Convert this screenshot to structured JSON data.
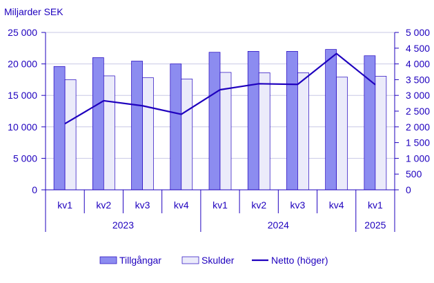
{
  "chart_data": {
    "type": "bar",
    "unit_label": "Miljarder SEK",
    "categories": [
      "kv1",
      "kv2",
      "kv3",
      "kv4",
      "kv1",
      "kv2",
      "kv3",
      "kv4",
      "kv1"
    ],
    "groups": [
      {
        "label": "2023",
        "span": 4
      },
      {
        "label": "2024",
        "span": 4
      },
      {
        "label": "2025",
        "span": 1
      }
    ],
    "series": [
      {
        "name": "Tillgångar",
        "type": "bar",
        "axis": "left",
        "color": "#8c8cf0",
        "values": [
          19600,
          21000,
          20450,
          20000,
          21850,
          22000,
          22000,
          22300,
          21300
        ]
      },
      {
        "name": "Skulder",
        "type": "bar",
        "axis": "left",
        "color": "#ebebfa",
        "values": [
          17500,
          18100,
          17800,
          17600,
          18650,
          18600,
          18600,
          17900,
          18050
        ]
      },
      {
        "name": "Netto (höger)",
        "type": "line",
        "axis": "right",
        "color": "#1e00be",
        "values": [
          2100,
          2830,
          2670,
          2400,
          3180,
          3370,
          3350,
          4330,
          3340
        ]
      }
    ],
    "y_left": {
      "min": 0,
      "max": 25000,
      "ticks": [
        0,
        5000,
        10000,
        15000,
        20000,
        25000
      ],
      "tick_labels": [
        "0",
        "5 000",
        "10 000",
        "15 000",
        "20 000",
        "25 000"
      ]
    },
    "y_right": {
      "min": 0,
      "max": 5000,
      "ticks": [
        0,
        500,
        1000,
        1500,
        2000,
        2500,
        3000,
        3500,
        4000,
        4500,
        5000
      ],
      "tick_labels": [
        "0",
        "500",
        "1 000",
        "1 500",
        "2 000",
        "2 500",
        "3 000",
        "3 500",
        "4 000",
        "4 500",
        "5 000"
      ]
    },
    "grid": true,
    "legend_position": "bottom"
  },
  "colors": {
    "text": "#1e00be",
    "grid": "#c8c8e6",
    "axis": "#1e00be",
    "bar_stroke": "#1e00be"
  }
}
